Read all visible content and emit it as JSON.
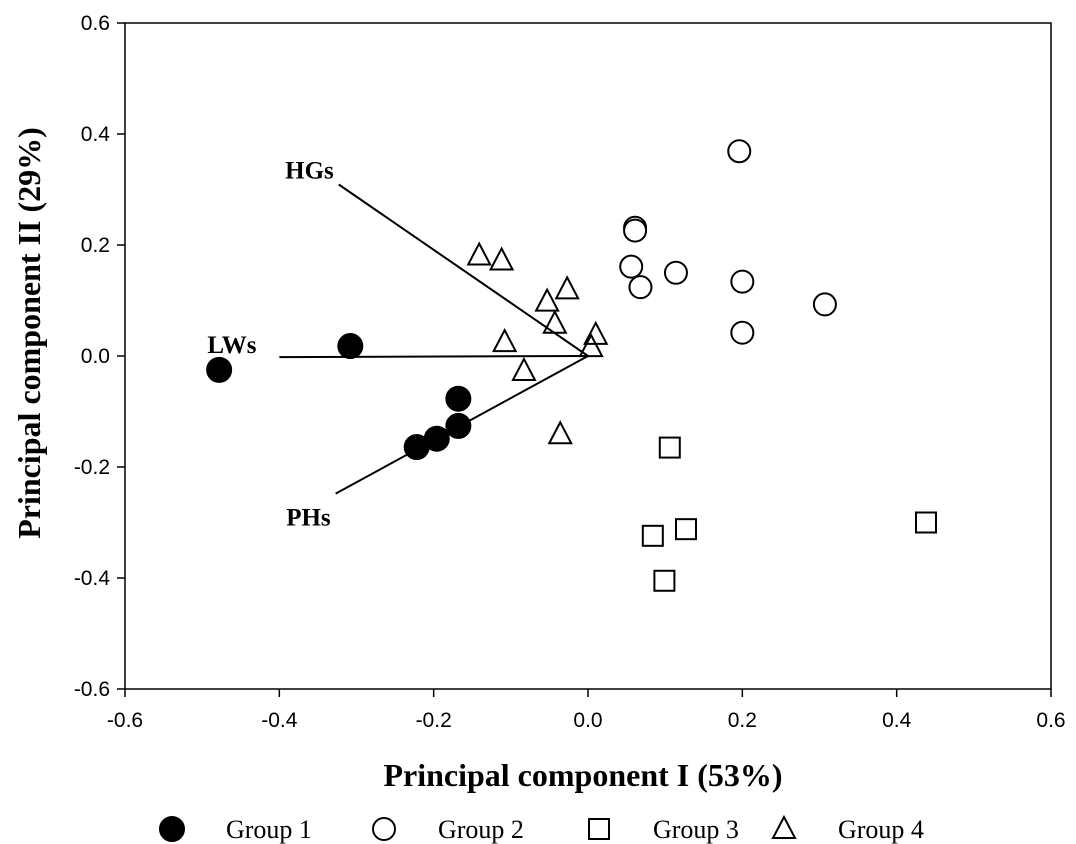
{
  "chart_data": {
    "type": "scatter",
    "xlabel": "Principal component I (53%)",
    "ylabel": "Principal component II (29%)",
    "xlim": [
      -0.6,
      0.6
    ],
    "ylim": [
      -0.6,
      0.6
    ],
    "x_ticks": [
      -0.6,
      -0.4,
      -0.2,
      0.0,
      0.2,
      0.4,
      0.6
    ],
    "y_ticks": [
      -0.6,
      -0.4,
      -0.2,
      0.0,
      0.2,
      0.4,
      0.6
    ],
    "x_tick_labels": [
      "-0.6",
      "-0.4",
      "-0.2",
      "0.0",
      "0.2",
      "0.4",
      "0.6"
    ],
    "y_tick_labels": [
      "-0.6",
      "-0.4",
      "-0.2",
      "0.0",
      "0.2",
      "0.4",
      "0.6"
    ],
    "grid": false,
    "legend_position": "bottom",
    "series": [
      {
        "name": "Group 1",
        "marker": "filled-circle",
        "points": [
          [
            -0.478,
            -0.025
          ],
          [
            -0.308,
            0.018
          ],
          [
            -0.168,
            -0.077
          ],
          [
            -0.168,
            -0.126
          ],
          [
            -0.196,
            -0.149
          ],
          [
            -0.222,
            -0.164
          ]
        ]
      },
      {
        "name": "Group 2",
        "marker": "open-circle",
        "points": [
          [
            0.196,
            0.369
          ],
          [
            0.061,
            0.231
          ],
          [
            0.061,
            0.226
          ],
          [
            0.056,
            0.161
          ],
          [
            0.114,
            0.15
          ],
          [
            0.068,
            0.124
          ],
          [
            0.2,
            0.134
          ],
          [
            0.307,
            0.093
          ],
          [
            0.2,
            0.042
          ]
        ]
      },
      {
        "name": "Group 3",
        "marker": "open-square",
        "points": [
          [
            0.106,
            -0.165
          ],
          [
            0.438,
            -0.3
          ],
          [
            0.127,
            -0.312
          ],
          [
            0.084,
            -0.324
          ],
          [
            0.099,
            -0.405
          ]
        ]
      },
      {
        "name": "Group 4",
        "marker": "open-triangle",
        "points": [
          [
            -0.141,
            0.181
          ],
          [
            -0.112,
            0.172
          ],
          [
            -0.027,
            0.12
          ],
          [
            -0.053,
            0.098
          ],
          [
            -0.043,
            0.058
          ],
          [
            -0.108,
            0.025
          ],
          [
            0.01,
            0.038
          ],
          [
            0.004,
            0.016
          ],
          [
            -0.083,
            -0.027
          ],
          [
            -0.036,
            -0.141
          ]
        ]
      }
    ],
    "vectors": [
      {
        "label": "HGs",
        "from": [
          0.0,
          0.0
        ],
        "to": [
          -0.323,
          0.309
        ]
      },
      {
        "label": "LWs",
        "from": [
          0.0,
          0.0
        ],
        "to": [
          -0.4,
          -0.002
        ]
      },
      {
        "label": "PHs",
        "from": [
          0.0,
          0.0
        ],
        "to": [
          -0.327,
          -0.248
        ]
      }
    ]
  }
}
